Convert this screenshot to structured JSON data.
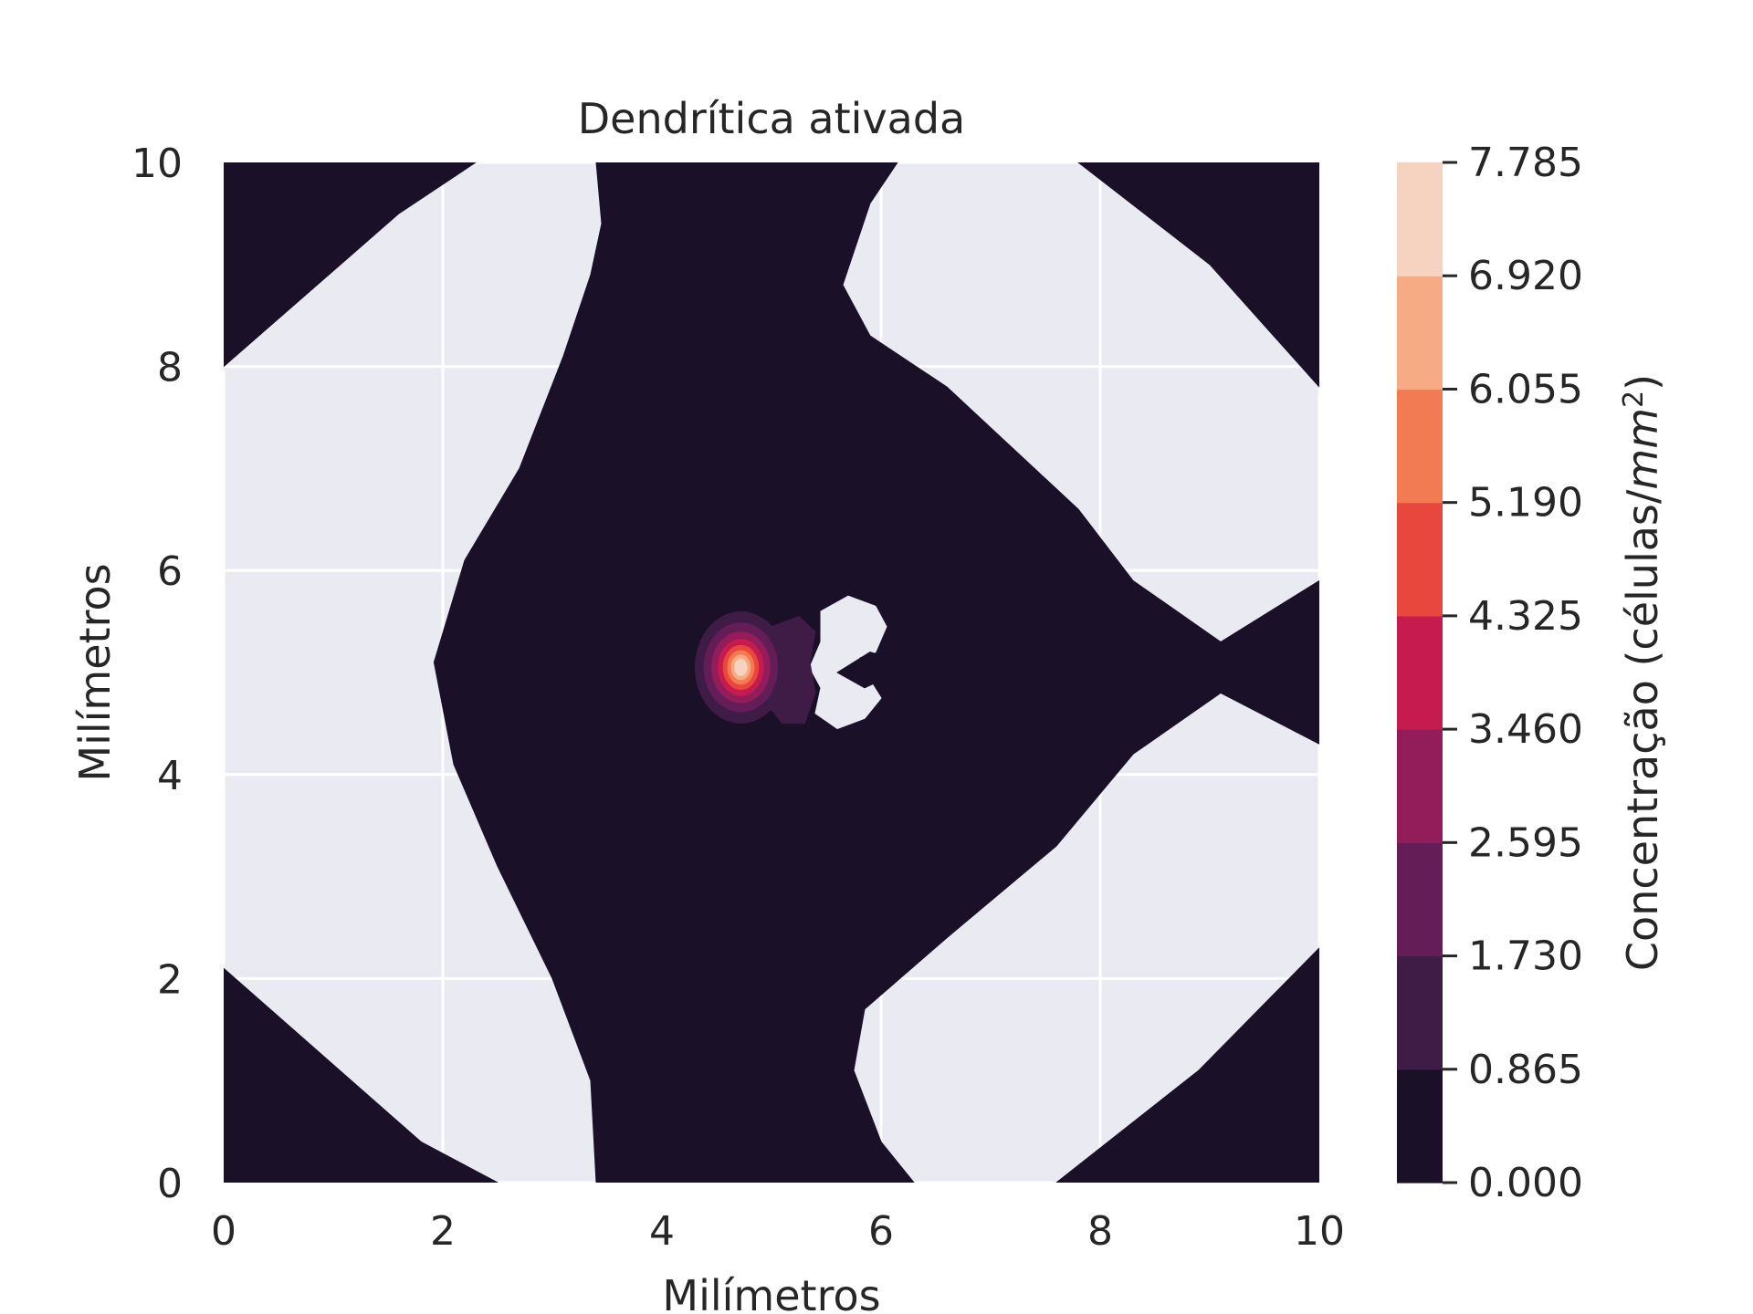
{
  "chart_data": {
    "type": "heatmap",
    "subtype": "filled-contour",
    "title": "Dendrítica ativada",
    "xlabel": "Milímetros",
    "ylabel": "Milímetros",
    "xlim": [
      0,
      10
    ],
    "ylim": [
      0,
      10
    ],
    "xticks": [
      "0",
      "2",
      "4",
      "6",
      "8",
      "10"
    ],
    "yticks": [
      "0",
      "2",
      "4",
      "6",
      "8",
      "10"
    ],
    "grid": true,
    "background_color": "#eaeaf2",
    "colorbar": {
      "label": "Concentração (células/mm²)",
      "label_parts": [
        "Concentração (células/",
        "mm",
        "2",
        ")"
      ],
      "levels": [
        0.0,
        0.865,
        1.73,
        2.595,
        3.46,
        4.325,
        5.19,
        6.055,
        6.92,
        7.785
      ],
      "tick_labels": [
        "0.000",
        "0.865",
        "1.730",
        "2.595",
        "3.460",
        "4.325",
        "5.190",
        "6.055",
        "6.920",
        "7.785"
      ],
      "colors": [
        "#1a1028",
        "#3e1c45",
        "#641d56",
        "#931c5a",
        "#c51b4e",
        "#e8473e",
        "#f37b53",
        "#f6ab84",
        "#f6d3c0"
      ]
    },
    "peak": {
      "x": 4.7,
      "y": 5.05,
      "value": 7.785
    },
    "regions": [
      {
        "name": "main-low-concentration-region",
        "level_index": 0,
        "outline": [
          [
            3.4,
            0
          ],
          [
            6.3,
            0
          ],
          [
            6.0,
            0.4
          ],
          [
            5.75,
            1.1
          ],
          [
            5.85,
            1.7
          ],
          [
            6.6,
            2.4
          ],
          [
            7.6,
            3.3
          ],
          [
            8.3,
            4.2
          ],
          [
            9.1,
            4.8
          ],
          [
            10,
            4.3
          ],
          [
            10,
            5.9
          ],
          [
            9.1,
            5.3
          ],
          [
            8.3,
            5.9
          ],
          [
            7.8,
            6.6
          ],
          [
            7.0,
            7.4
          ],
          [
            6.6,
            7.8
          ],
          [
            5.9,
            8.3
          ],
          [
            5.65,
            8.8
          ],
          [
            5.9,
            9.6
          ],
          [
            6.15,
            10
          ],
          [
            3.4,
            10
          ],
          [
            3.45,
            9.4
          ],
          [
            3.35,
            8.9
          ],
          [
            3.1,
            8.1
          ],
          [
            2.7,
            7.0
          ],
          [
            2.2,
            6.1
          ],
          [
            1.92,
            5.1
          ],
          [
            2.1,
            4.1
          ],
          [
            2.5,
            3.1
          ],
          [
            3.0,
            2.0
          ],
          [
            3.35,
            1.0
          ]
        ]
      },
      {
        "name": "corner-bottom-left",
        "level_index": 0,
        "outline": [
          [
            0,
            0
          ],
          [
            2.5,
            0
          ],
          [
            1.8,
            0.4
          ],
          [
            0,
            2.1
          ]
        ]
      },
      {
        "name": "corner-top-left",
        "level_index": 0,
        "outline": [
          [
            0,
            10
          ],
          [
            2.3,
            10
          ],
          [
            1.6,
            9.5
          ],
          [
            0,
            8.0
          ]
        ]
      },
      {
        "name": "corner-top-right",
        "level_index": 0,
        "outline": [
          [
            7.8,
            10
          ],
          [
            10,
            10
          ],
          [
            10,
            7.8
          ],
          [
            9.0,
            9.0
          ]
        ]
      },
      {
        "name": "corner-bottom-right",
        "level_index": 0,
        "outline": [
          [
            7.6,
            0
          ],
          [
            10,
            0
          ],
          [
            10,
            2.3
          ],
          [
            8.9,
            1.1
          ]
        ]
      },
      {
        "name": "white-island",
        "level_index": null,
        "outline": [
          [
            5.45,
            5.6
          ],
          [
            5.7,
            5.75
          ],
          [
            5.95,
            5.65
          ],
          [
            6.05,
            5.45
          ],
          [
            5.95,
            5.2
          ],
          [
            5.8,
            5.15
          ],
          [
            5.9,
            4.92
          ],
          [
            6.0,
            4.75
          ],
          [
            5.85,
            4.55
          ],
          [
            5.6,
            4.45
          ],
          [
            5.4,
            4.6
          ],
          [
            5.45,
            4.85
          ],
          [
            5.35,
            5.05
          ],
          [
            5.45,
            5.3
          ]
        ]
      },
      {
        "name": "island-notch",
        "level_index": 0,
        "outline": [
          [
            5.9,
            5.2
          ],
          [
            5.6,
            5.0
          ],
          [
            5.85,
            4.85
          ],
          [
            6.05,
            4.95
          ],
          [
            6.05,
            5.15
          ]
        ]
      },
      {
        "name": "side-lobe",
        "level_index": 1,
        "outline": [
          [
            5.0,
            5.45
          ],
          [
            5.25,
            5.55
          ],
          [
            5.4,
            5.4
          ],
          [
            5.35,
            5.1
          ],
          [
            5.4,
            4.8
          ],
          [
            5.3,
            4.5
          ],
          [
            5.1,
            4.5
          ],
          [
            4.95,
            4.7
          ],
          [
            5.1,
            4.9
          ],
          [
            5.05,
            5.15
          ]
        ]
      }
    ],
    "blob": {
      "center": [
        4.72,
        5.05
      ],
      "rings": [
        {
          "level_index": 1,
          "rx": 0.42,
          "ry": 0.55
        },
        {
          "level_index": 2,
          "rx": 0.34,
          "ry": 0.44
        },
        {
          "level_index": 3,
          "rx": 0.27,
          "ry": 0.35
        },
        {
          "level_index": 4,
          "rx": 0.21,
          "ry": 0.28
        },
        {
          "level_index": 5,
          "rx": 0.165,
          "ry": 0.22
        },
        {
          "level_index": 6,
          "rx": 0.125,
          "ry": 0.17
        },
        {
          "level_index": 7,
          "rx": 0.09,
          "ry": 0.125
        },
        {
          "level_index": 8,
          "rx": 0.06,
          "ry": 0.085
        }
      ]
    }
  }
}
